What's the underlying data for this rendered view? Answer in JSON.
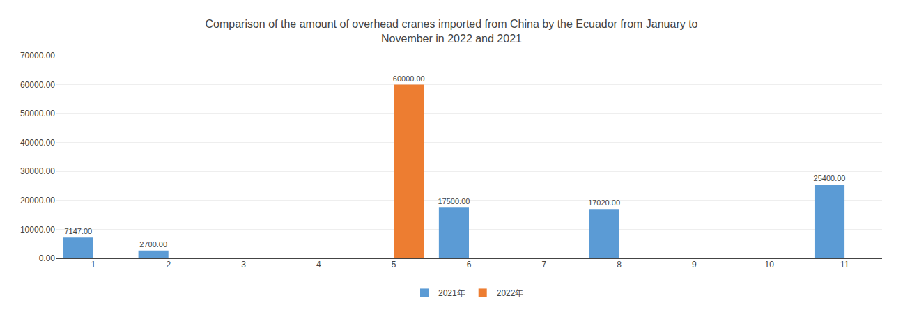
{
  "chart_data": {
    "type": "bar",
    "title": "Comparison of the amount of overhead cranes imported from China by the Ecuador from January to\nNovember in 2022 and 2021",
    "categories": [
      "1",
      "2",
      "3",
      "4",
      "5",
      "6",
      "7",
      "8",
      "9",
      "10",
      "11"
    ],
    "series": [
      {
        "name": "2021年",
        "color": "#5b9bd5",
        "values": [
          7147,
          2700,
          0,
          0,
          0,
          17500,
          0,
          17020,
          0,
          0,
          25400
        ],
        "value_labels": [
          "7147.00",
          "2700.00",
          null,
          null,
          null,
          "17500.00",
          null,
          "17020.00",
          null,
          null,
          "25400.00"
        ]
      },
      {
        "name": "2022年",
        "color": "#ed7d31",
        "values": [
          0,
          0,
          0,
          0,
          60000,
          0,
          0,
          0,
          0,
          0,
          0
        ],
        "value_labels": [
          null,
          null,
          null,
          null,
          "60000.00",
          null,
          null,
          null,
          null,
          null,
          null
        ]
      }
    ],
    "ylim": [
      0,
      70000
    ],
    "yticks": [
      {
        "value": 0,
        "label": "0.00"
      },
      {
        "value": 10000,
        "label": "10000.00"
      },
      {
        "value": 20000,
        "label": "20000.00"
      },
      {
        "value": 30000,
        "label": "30000.00"
      },
      {
        "value": 40000,
        "label": "40000.00"
      },
      {
        "value": 50000,
        "label": "50000.00"
      },
      {
        "value": 60000,
        "label": "60000.00"
      },
      {
        "value": 70000,
        "label": "70000.00"
      }
    ],
    "grid": true,
    "legend": "bottom",
    "data_labels": true
  }
}
